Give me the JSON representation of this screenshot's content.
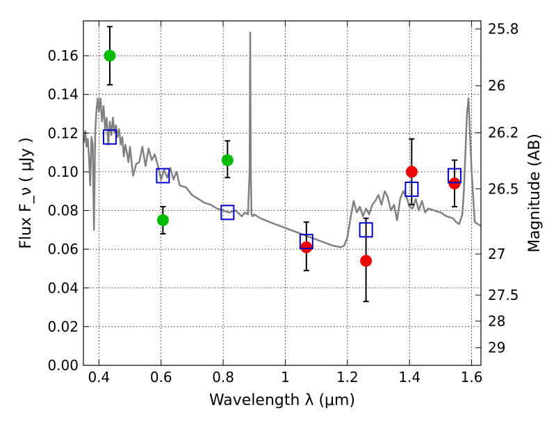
{
  "chart_data": {
    "type": "scatter",
    "xlabel": "Wavelength  λ (μm)",
    "ylabel": "Flux  F_ν  ( μJy )",
    "y2label": "Magnitude (AB)",
    "xlim": [
      0.35,
      1.63
    ],
    "ylim": [
      0.0,
      0.178
    ],
    "grid": true,
    "x_ticks": [
      0.4,
      0.6,
      0.8,
      1.0,
      1.2,
      1.4,
      1.6
    ],
    "x_tick_labels": [
      "0.4",
      "0.6",
      "0.8",
      "1",
      "1.2",
      "1.4",
      "1.6"
    ],
    "y_ticks": [
      0.0,
      0.02,
      0.04,
      0.06,
      0.08,
      0.1,
      0.12,
      0.14,
      0.16
    ],
    "y_tick_labels": [
      "0.00",
      "0.02",
      "0.04",
      "0.06",
      "0.08",
      "0.10",
      "0.12",
      "0.14",
      "0.16"
    ],
    "y2_ticks": [
      {
        "label": "25.8",
        "flux": 0.1738
      },
      {
        "label": "26",
        "flux": 0.1445
      },
      {
        "label": "26.2",
        "flux": 0.1202
      },
      {
        "label": "26.5",
        "flux": 0.0912
      },
      {
        "label": "27",
        "flux": 0.0575
      },
      {
        "label": "27.5",
        "flux": 0.0363
      },
      {
        "label": "28",
        "flux": 0.0229
      },
      {
        "label": "29",
        "flux": 0.0091
      }
    ],
    "series": [
      {
        "marker": "circle",
        "color": "#00bb00",
        "points": [
          {
            "x": 0.435,
            "y": 0.16,
            "yerr_low": 0.145,
            "yerr_high": 0.175
          },
          {
            "x": 0.606,
            "y": 0.075,
            "yerr_low": 0.068,
            "yerr_high": 0.082
          },
          {
            "x": 0.814,
            "y": 0.106,
            "yerr_low": 0.097,
            "yerr_high": 0.116
          }
        ]
      },
      {
        "marker": "circle",
        "color": "#ee0000",
        "points": [
          {
            "x": 1.068,
            "y": 0.061,
            "yerr_low": 0.049,
            "yerr_high": 0.074
          },
          {
            "x": 1.26,
            "y": 0.054,
            "yerr_low": 0.033,
            "yerr_high": 0.076
          },
          {
            "x": 1.407,
            "y": 0.1,
            "yerr_low": 0.083,
            "yerr_high": 0.117
          },
          {
            "x": 1.545,
            "y": 0.094,
            "yerr_low": 0.082,
            "yerr_high": 0.106
          }
        ]
      },
      {
        "marker": "open-square",
        "color": "#0000cc",
        "points": [
          {
            "x": 0.435,
            "y": 0.118
          },
          {
            "x": 0.606,
            "y": 0.098
          },
          {
            "x": 0.814,
            "y": 0.079
          },
          {
            "x": 1.068,
            "y": 0.064
          },
          {
            "x": 1.26,
            "y": 0.07
          },
          {
            "x": 1.407,
            "y": 0.091
          },
          {
            "x": 1.545,
            "y": 0.098
          }
        ]
      }
    ],
    "spectrum": {
      "color": "#808080",
      "x": [
        0.352,
        0.356,
        0.36,
        0.364,
        0.368,
        0.372,
        0.376,
        0.38,
        0.384,
        0.388,
        0.392,
        0.396,
        0.4,
        0.405,
        0.41,
        0.415,
        0.42,
        0.425,
        0.43,
        0.435,
        0.44,
        0.445,
        0.45,
        0.455,
        0.46,
        0.465,
        0.47,
        0.475,
        0.48,
        0.485,
        0.49,
        0.495,
        0.5,
        0.51,
        0.52,
        0.53,
        0.54,
        0.55,
        0.56,
        0.57,
        0.58,
        0.59,
        0.6,
        0.61,
        0.62,
        0.63,
        0.64,
        0.65,
        0.66,
        0.68,
        0.7,
        0.72,
        0.74,
        0.76,
        0.78,
        0.8,
        0.82,
        0.84,
        0.86,
        0.87,
        0.88,
        0.885,
        0.887,
        0.889,
        0.891,
        0.895,
        0.9,
        0.92,
        0.95,
        1.0,
        1.05,
        1.1,
        1.15,
        1.18,
        1.19,
        1.2,
        1.21,
        1.22,
        1.23,
        1.24,
        1.25,
        1.26,
        1.27,
        1.28,
        1.29,
        1.3,
        1.31,
        1.32,
        1.33,
        1.34,
        1.35,
        1.36,
        1.37,
        1.38,
        1.39,
        1.4,
        1.41,
        1.42,
        1.43,
        1.44,
        1.45,
        1.46,
        1.48,
        1.5,
        1.52,
        1.54,
        1.55,
        1.56,
        1.57,
        1.575,
        1.58,
        1.585,
        1.59,
        1.6,
        1.61,
        1.63
      ],
      "y": [
        0.115,
        0.121,
        0.113,
        0.117,
        0.108,
        0.093,
        0.118,
        0.114,
        0.07,
        0.12,
        0.132,
        0.138,
        0.131,
        0.138,
        0.126,
        0.134,
        0.122,
        0.128,
        0.114,
        0.126,
        0.119,
        0.128,
        0.12,
        0.124,
        0.118,
        0.122,
        0.114,
        0.118,
        0.108,
        0.114,
        0.11,
        0.105,
        0.113,
        0.098,
        0.104,
        0.105,
        0.113,
        0.103,
        0.112,
        0.106,
        0.109,
        0.103,
        0.096,
        0.101,
        0.097,
        0.102,
        0.096,
        0.1,
        0.093,
        0.092,
        0.088,
        0.086,
        0.084,
        0.083,
        0.081,
        0.08,
        0.079,
        0.08,
        0.077,
        0.079,
        0.078,
        0.1,
        0.172,
        0.1,
        0.078,
        0.077,
        0.078,
        0.076,
        0.074,
        0.071,
        0.068,
        0.065,
        0.062,
        0.061,
        0.062,
        0.066,
        0.076,
        0.085,
        0.079,
        0.082,
        0.077,
        0.081,
        0.078,
        0.083,
        0.085,
        0.088,
        0.083,
        0.09,
        0.087,
        0.08,
        0.083,
        0.075,
        0.086,
        0.09,
        0.087,
        0.082,
        0.081,
        0.086,
        0.08,
        0.085,
        0.079,
        0.081,
        0.08,
        0.079,
        0.077,
        0.076,
        0.074,
        0.073,
        0.078,
        0.09,
        0.11,
        0.13,
        0.138,
        0.1,
        0.074,
        0.072
      ]
    }
  }
}
